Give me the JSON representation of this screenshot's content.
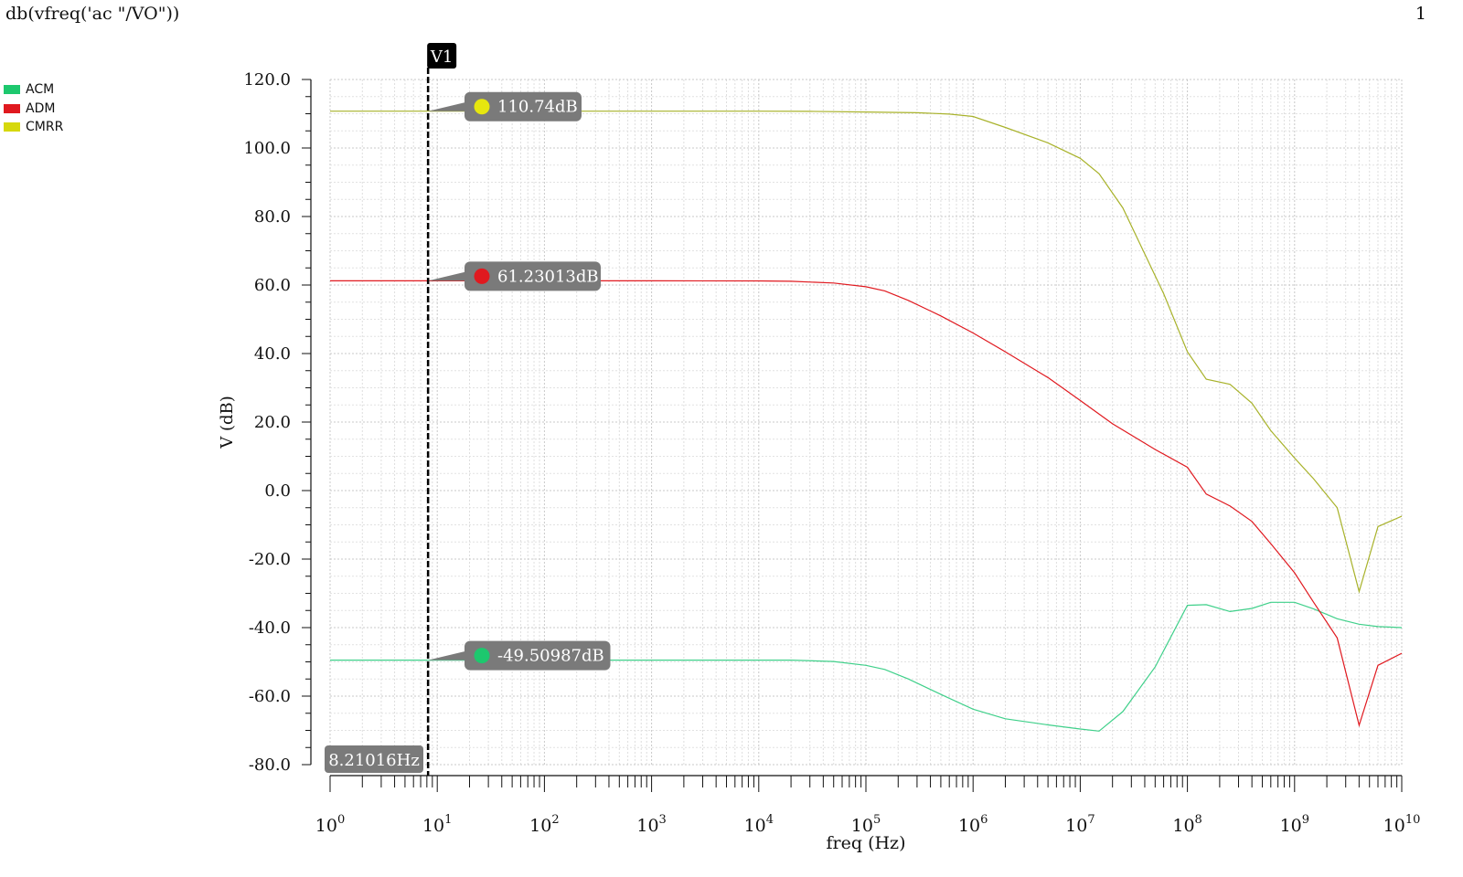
{
  "header": {
    "title": "db(vfreq('ac \"/VO\"))",
    "page_number": "1"
  },
  "legend": [
    {
      "name": "ACM",
      "color": "#1dc86e"
    },
    {
      "name": "ADM",
      "color": "#e0191f"
    },
    {
      "name": "CMRR",
      "color": "#d6d80c"
    }
  ],
  "chart_data": {
    "type": "line",
    "title": "db(vfreq('ac \"/VO\"))",
    "xlabel": "freq (Hz)",
    "ylabel": "V (dB)",
    "x_scale": "log",
    "xlim": [
      1,
      10000000000
    ],
    "ylim": [
      -80,
      120
    ],
    "y_ticks": [
      "120.0",
      "100.0",
      "80.0",
      "60.0",
      "40.0",
      "20.0",
      "0.0",
      "-20.0",
      "-40.0",
      "-60.0",
      "-80.0"
    ],
    "x_ticks": [
      {
        "value": 1,
        "base": "10",
        "exp": "0"
      },
      {
        "value": 10,
        "base": "10",
        "exp": "1"
      },
      {
        "value": 100,
        "base": "10",
        "exp": "2"
      },
      {
        "value": 1000,
        "base": "10",
        "exp": "3"
      },
      {
        "value": 10000,
        "base": "10",
        "exp": "4"
      },
      {
        "value": 100000,
        "base": "10",
        "exp": "5"
      },
      {
        "value": 1000000,
        "base": "10",
        "exp": "6"
      },
      {
        "value": 10000000,
        "base": "10",
        "exp": "7"
      },
      {
        "value": 100000000,
        "base": "10",
        "exp": "8"
      },
      {
        "value": 1000000000,
        "base": "10",
        "exp": "9"
      },
      {
        "value": 10000000000,
        "base": "10",
        "exp": "10"
      }
    ],
    "grid": true,
    "legend_position": "top-left",
    "series": [
      {
        "name": "ACM",
        "color": "#3fd08a",
        "x": [
          1,
          10,
          100,
          1000,
          10000,
          20000,
          50000,
          100000,
          150000,
          250000,
          500000,
          1000000,
          2000000,
          5000000,
          10000000,
          15000000,
          25000000,
          50000000,
          100000000,
          150000000,
          250000000,
          400000000,
          600000000,
          1000000000,
          1500000000,
          2500000000,
          4000000000,
          6000000000,
          10000000000
        ],
        "y": [
          -49.5,
          -49.5,
          -49.5,
          -49.5,
          -49.5,
          -49.5,
          -49.9,
          -51,
          -52.2,
          -55,
          -59.5,
          -63.8,
          -66.6,
          -68.4,
          -69.6,
          -70.2,
          -64.5,
          -51.5,
          -33.5,
          -33.3,
          -35.3,
          -34.4,
          -32.6,
          -32.6,
          -34.5,
          -37.4,
          -39,
          -39.7,
          -40
        ]
      },
      {
        "name": "ADM",
        "color": "#e0191f",
        "x": [
          1,
          10,
          100,
          1000,
          10000,
          20000,
          50000,
          100000,
          150000,
          250000,
          500000,
          1000000,
          2000000,
          5000000,
          10000000,
          20000000,
          50000000,
          100000000,
          150000000,
          250000000,
          400000000,
          600000000,
          1000000000,
          1500000000,
          2500000000,
          4000000000,
          6000000000,
          10000000000
        ],
        "y": [
          61.23,
          61.23,
          61.23,
          61.23,
          61.2,
          61.1,
          60.6,
          59.5,
          58.3,
          55.5,
          51,
          46,
          40.5,
          33,
          26.3,
          19.5,
          12,
          6.8,
          -1,
          -4.5,
          -9,
          -15.5,
          -24,
          -32.5,
          -43,
          -68.5,
          -51,
          -47.5
        ]
      },
      {
        "name": "CMRR",
        "color": "#a8b22a",
        "x": [
          1,
          10,
          100,
          1000,
          10000,
          30000,
          100000,
          300000,
          600000,
          1000000,
          2000000,
          5000000,
          10000000,
          15000000,
          25000000,
          60000000,
          100000000,
          150000000,
          250000000,
          400000000,
          600000000,
          1000000000,
          1500000000,
          2500000000,
          4000000000,
          6000000000,
          10000000000
        ],
        "y": [
          110.74,
          110.74,
          110.74,
          110.74,
          110.74,
          110.7,
          110.5,
          110.3,
          109.9,
          109.2,
          106,
          101.5,
          97,
          92.5,
          82.5,
          57.5,
          40.5,
          32.5,
          31,
          25.5,
          17.5,
          9.5,
          3.5,
          -5,
          -29.5,
          -10.5,
          -7.5
        ]
      }
    ],
    "cursor": {
      "name": "V1",
      "x": 8.21016,
      "x_label": "8.21016Hz",
      "markers": [
        {
          "series": "CMRR",
          "label": "110.74dB",
          "y": 110.74,
          "dot_color": "#e6e60e"
        },
        {
          "series": "ADM",
          "label": "61.23013dB",
          "y": 61.23,
          "dot_color": "#e0191f"
        },
        {
          "series": "ACM",
          "label": "-49.50987dB",
          "y": -49.51,
          "dot_color": "#1dc86e"
        }
      ]
    }
  }
}
